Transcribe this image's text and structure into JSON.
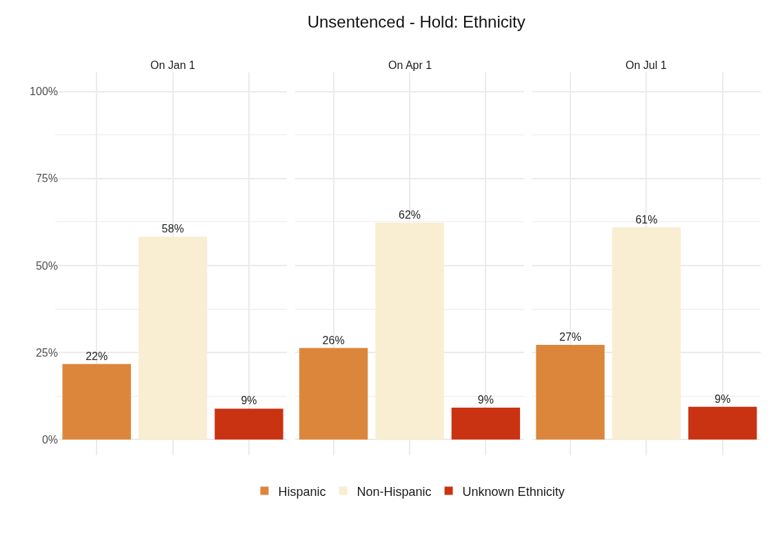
{
  "chart_data": {
    "type": "bar",
    "title": "Unsentenced - Hold: Ethnicity",
    "categories": [
      "On Jan 1",
      "On Apr 1",
      "On Jul 1"
    ],
    "series": [
      {
        "name": "Hispanic",
        "color": "#dc863b",
        "values": [
          21.7,
          26.3,
          27.2
        ],
        "value_labels": [
          "22%",
          "26%",
          "27%"
        ]
      },
      {
        "name": "Non-Hispanic",
        "color": "#f9edd2",
        "values": [
          58.3,
          62.3,
          61.0
        ],
        "value_labels": [
          "58%",
          "62%",
          "61%"
        ]
      },
      {
        "name": "Unknown Ethnicity",
        "color": "#c93312",
        "values": [
          8.9,
          9.2,
          9.4
        ],
        "value_labels": [
          "9%",
          "9%",
          "9%"
        ]
      }
    ],
    "ylim": [
      -4.5,
      105.5
    ],
    "yticks": [
      {
        "value": 0,
        "label": "0%"
      },
      {
        "value": 12.5,
        "label": null
      },
      {
        "value": 25,
        "label": "25%"
      },
      {
        "value": 37.5,
        "label": null
      },
      {
        "value": 50,
        "label": "50%"
      },
      {
        "value": 62.5,
        "label": null
      },
      {
        "value": 75,
        "label": "75%"
      },
      {
        "value": 87.5,
        "label": null
      },
      {
        "value": 100,
        "label": "100%"
      }
    ],
    "grid": true,
    "legend": "bottom",
    "tick_labels": "y"
  }
}
